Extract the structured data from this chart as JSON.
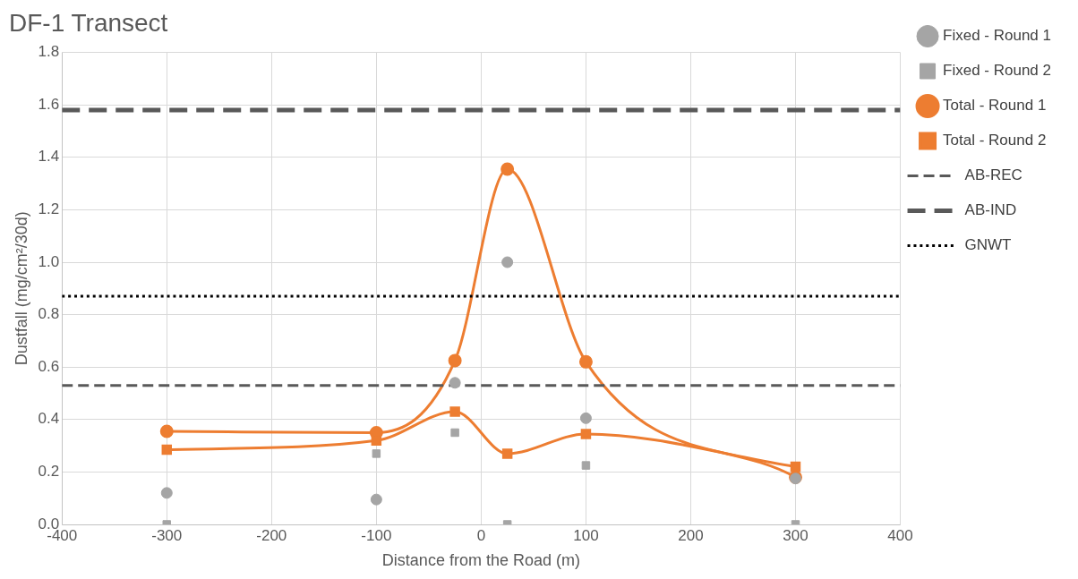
{
  "chart_data": {
    "type": "line",
    "title": "DF-1 Transect",
    "xlabel": "Distance from the Road (m)",
    "ylabel": "Dustfall (mg/cm²/30d)",
    "x": [
      -300,
      -100,
      -25,
      25,
      100,
      300
    ],
    "series": [
      {
        "name": "Total - Round 1",
        "marker": "circle",
        "color": "#ed7d31",
        "values": [
          0.355,
          0.35,
          0.625,
          1.355,
          0.62,
          0.18
        ]
      },
      {
        "name": "Fixed - Round 1",
        "type": "scatter",
        "marker": "circle",
        "color": "#a5a5a5",
        "values": [
          0.12,
          0.095,
          0.54,
          1.0,
          0.405,
          0.175
        ]
      },
      {
        "name": "Total - Round 2",
        "marker": "square",
        "color": "#ed7d31",
        "values": [
          0.285,
          0.32,
          0.43,
          0.27,
          0.345,
          0.22
        ]
      },
      {
        "name": "Fixed - Round 2",
        "type": "scatter",
        "marker": "square",
        "color": "#a5a5a5",
        "values": [
          0.0,
          0.27,
          0.35,
          0.0,
          0.225,
          0.0
        ]
      }
    ],
    "ref_lines": [
      {
        "axis": "y",
        "value": 0.53,
        "label": "AB-REC",
        "color": "#595959",
        "line_style": "dashed"
      },
      {
        "axis": "y",
        "value": 1.58,
        "label": "AB-IND",
        "color": "#595959",
        "line_style": "dashed"
      },
      {
        "axis": "y",
        "value": 0.87,
        "label": "GNWT",
        "color": "#000000",
        "line_style": "dotted"
      }
    ],
    "xlim": [
      -400,
      400
    ],
    "xticks": [
      -400,
      -300,
      -200,
      -100,
      0,
      100,
      200,
      300,
      400
    ],
    "ylim": [
      0,
      1.8
    ],
    "yticks": [
      {
        "value": 0,
        "label": "0.0"
      },
      {
        "value": 0.2,
        "label": "0.2"
      },
      {
        "value": 0.4,
        "label": "0.4"
      },
      {
        "value": 0.6,
        "label": "0.6"
      },
      {
        "value": 0.8,
        "label": "0.8"
      },
      {
        "value": 1.0,
        "label": "1.0"
      },
      {
        "value": 1.2,
        "label": "1.2"
      },
      {
        "value": 1.4,
        "label": "1.4"
      },
      {
        "value": 1.6,
        "label": "1.6"
      },
      {
        "value": 1.8,
        "label": "1.8"
      }
    ],
    "grid": true,
    "legend": "top right"
  }
}
